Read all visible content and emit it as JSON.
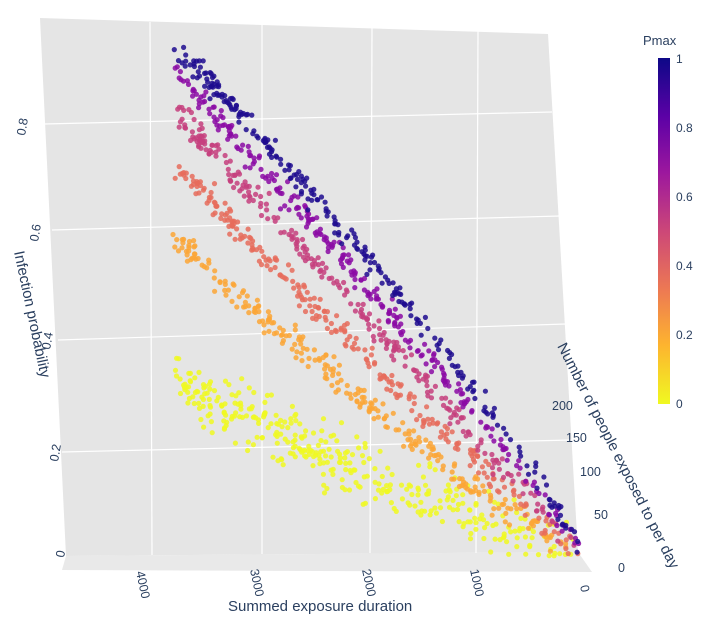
{
  "chart_data": {
    "type": "scatter3d",
    "title": "",
    "x_axis": {
      "label": "Summed exposure duration",
      "ticks": [
        "0",
        "1000",
        "2000",
        "3000",
        "4000"
      ],
      "range": [
        0,
        4500
      ]
    },
    "y_axis": {
      "label": "Number of people exposed to per day",
      "ticks": [
        "0",
        "50",
        "100",
        "150",
        "200"
      ],
      "range": [
        0,
        240
      ]
    },
    "z_axis": {
      "label": "Infection probability",
      "ticks": [
        "0",
        "0.2",
        "0.4",
        "0.6",
        "0.8"
      ],
      "range": [
        0,
        0.95
      ]
    },
    "grid": true,
    "colorbar": {
      "title": "Pmax",
      "ticks": [
        "0",
        "0.2",
        "0.4",
        "0.6",
        "0.8",
        "1"
      ],
      "colors": [
        "#f0f921",
        "#fdb42f",
        "#ed7953",
        "#cc4778",
        "#9c179e",
        "#5c01a6",
        "#0d0887"
      ]
    },
    "series": [
      {
        "pmax": 0.1,
        "color": "#f0f921",
        "approx_max_probability": 0.3,
        "max_duration": 3600
      },
      {
        "pmax": 0.3,
        "color": "#fca636",
        "approx_max_probability": 0.56,
        "max_duration": 3600
      },
      {
        "pmax": 0.45,
        "color": "#e66c5c",
        "approx_max_probability": 0.7,
        "max_duration": 3600
      },
      {
        "pmax": 0.6,
        "color": "#c5407e",
        "approx_max_probability": 0.8,
        "max_duration": 3600
      },
      {
        "pmax": 0.8,
        "color": "#8b0aa5",
        "approx_max_probability": 0.87,
        "max_duration": 3600
      },
      {
        "pmax": 1.0,
        "color": "#1f0c8f",
        "approx_max_probability": 0.92,
        "max_duration": 3600
      }
    ]
  }
}
